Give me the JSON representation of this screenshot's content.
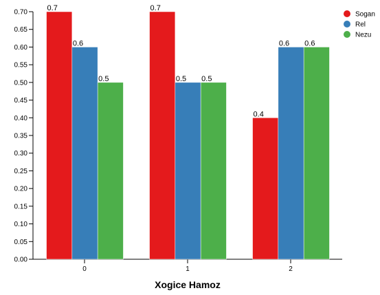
{
  "chart_data": {
    "type": "bar",
    "categories": [
      "0",
      "1",
      "2"
    ],
    "series": [
      {
        "name": "Sogan",
        "values": [
          0.7,
          0.7,
          0.4
        ],
        "color": "#e41a1c"
      },
      {
        "name": "Rel",
        "values": [
          0.6,
          0.5,
          0.6
        ],
        "color": "#377eb8"
      },
      {
        "name": "Nezu",
        "values": [
          0.5,
          0.5,
          0.6
        ],
        "color": "#4daf4a"
      }
    ],
    "data_labels": [
      [
        "0.7",
        "0.7",
        "0.4"
      ],
      [
        "0.6",
        "0.5",
        "0.6"
      ],
      [
        "0.5",
        "0.5",
        "0.6"
      ]
    ],
    "title": "",
    "xlabel": "Xogice Hamoz",
    "ylabel": "",
    "ylim": [
      0,
      0.7
    ],
    "yticks": [
      "0.00",
      "0.05",
      "0.10",
      "0.15",
      "0.20",
      "0.25",
      "0.30",
      "0.35",
      "0.40",
      "0.45",
      "0.50",
      "0.55",
      "0.60",
      "0.65",
      "0.70"
    ],
    "grid": false,
    "legend_position": "top-right"
  }
}
